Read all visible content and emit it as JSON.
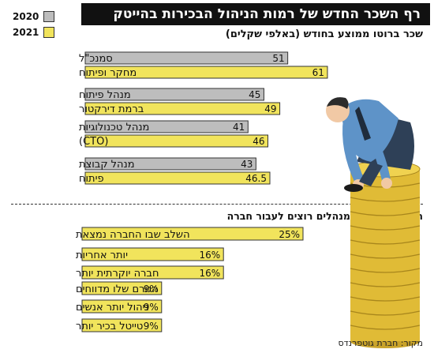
{
  "title": "רף השכר החדש של רמות הניהול הבכירות בהייטק",
  "subtitle": "שכר ברוטו ממוצע בחודש (באלפי שקלים)",
  "source": "מקור: חברת גוטפרנדס",
  "legend": [
    {
      "label": "2020",
      "color": "#bdbdbd"
    },
    {
      "label": "2021",
      "color": "#f1e45c"
    }
  ],
  "chart_data": [
    {
      "type": "bar",
      "orientation": "horizontal",
      "categories": [
        "סמנכ\"ל\nמחקר ופיתוח",
        "מנהל פיתוח\nברמת דירקטור",
        "מנהל טכנולוגיות\n(CTO)",
        "מנהל קבוצת\nפיתוח"
      ],
      "series": [
        {
          "name": "2020",
          "color": "#bdbdbd",
          "values": [
            51,
            45,
            41,
            43
          ],
          "labels": [
            "51",
            "45",
            "41",
            "43"
          ]
        },
        {
          "name": "2021",
          "color": "#f1e45c",
          "values": [
            61,
            49,
            46,
            46.5
          ],
          "labels": [
            "61",
            "49",
            "46",
            "46.5"
          ]
        }
      ],
      "xlim": [
        0,
        62
      ]
    },
    {
      "type": "bar",
      "orientation": "horizontal",
      "title": "הסיבות שבגללן מנהלים רוצים לעבור חברה",
      "categories": [
        "השלב שבו החברה נמצאת",
        "יותר אחריות",
        "חברה יוקרתית יותר",
        "הגורם שלו מדווחים",
        "ניהול יותר אנשים",
        "טייטל בכיר יותר"
      ],
      "values": [
        25,
        16,
        16,
        9,
        9,
        9
      ],
      "labels": [
        "25%",
        "16%",
        "16%",
        "9%",
        "9%",
        "9%"
      ],
      "color": "#f1e45c",
      "xlim": [
        0,
        25
      ]
    }
  ]
}
